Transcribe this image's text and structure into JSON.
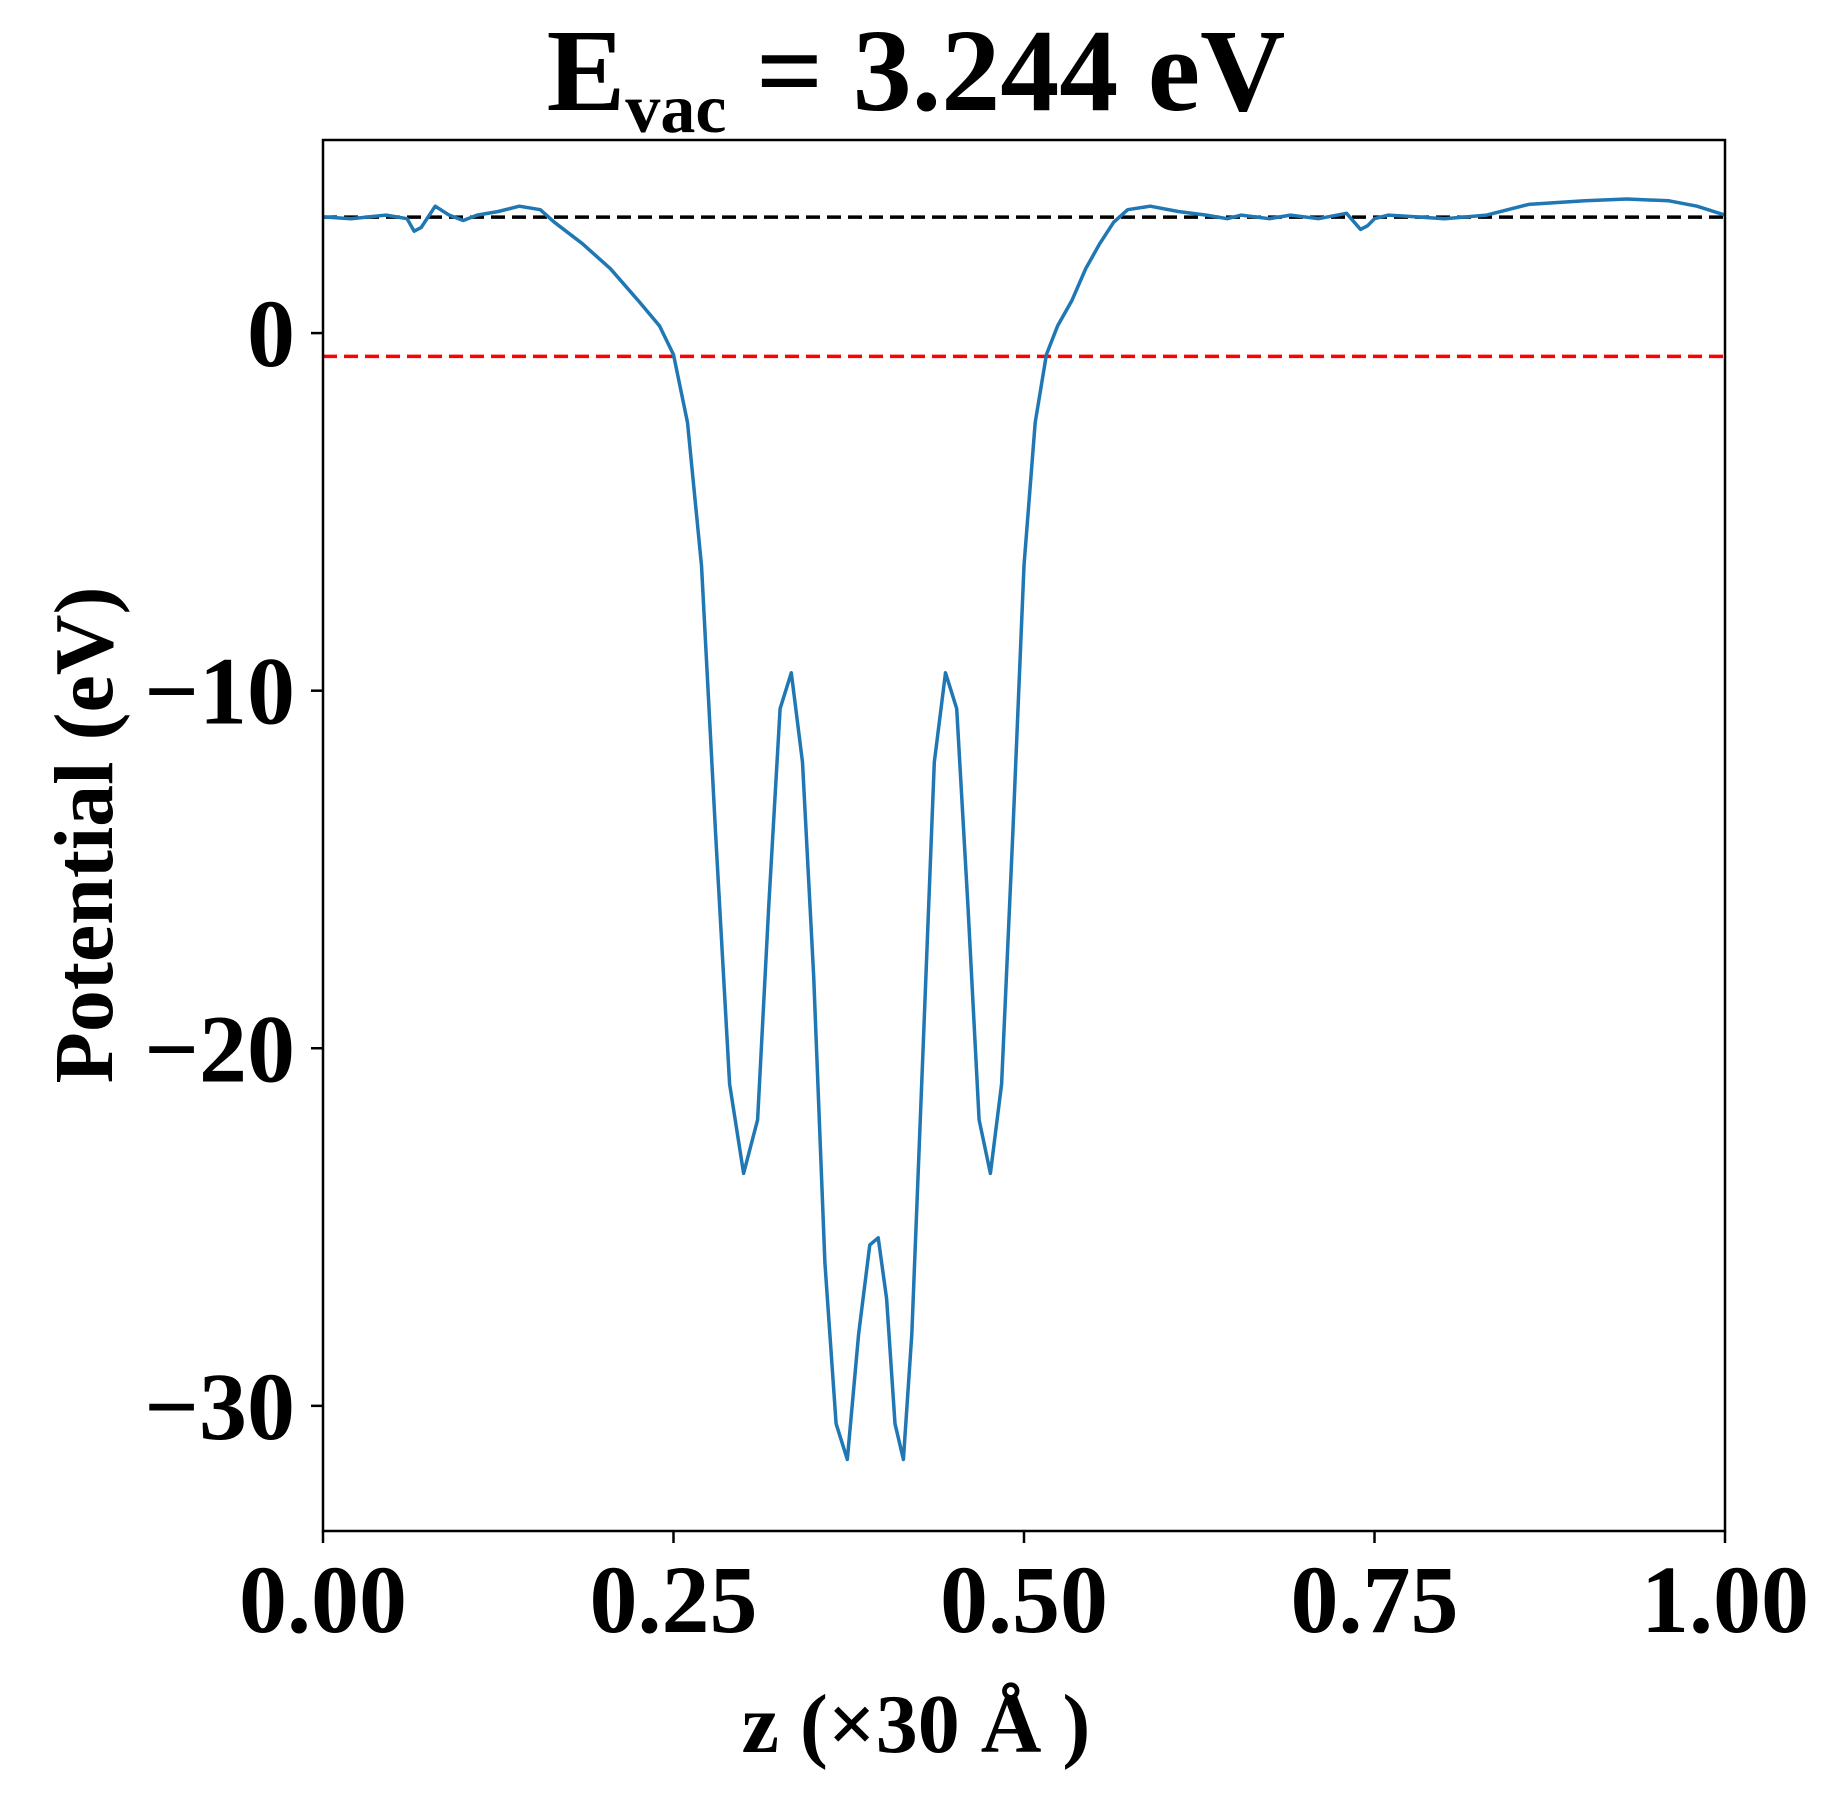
{
  "chart_data": {
    "type": "line",
    "title": {
      "main": "E",
      "subscript": "vac",
      "rest": " = 3.244 eV"
    },
    "xlabel": "z (×30 Å )",
    "ylabel": "Potential (eV)",
    "xlim": [
      0.0,
      1.0
    ],
    "ylim": [
      -33.5,
      5.4
    ],
    "xticks": [
      0.0,
      0.25,
      0.5,
      0.75,
      1.0
    ],
    "xtick_labels": [
      "0.00",
      "0.25",
      "0.50",
      "0.75",
      "1.00"
    ],
    "yticks": [
      0,
      -10,
      -20,
      -30
    ],
    "ytick_labels": [
      "0",
      "−10",
      "−20",
      "−30"
    ],
    "grid": false,
    "reference_lines": [
      {
        "y": 3.244,
        "color": "#000000",
        "style": "dashed"
      },
      {
        "y": -0.65,
        "color": "#ff0000",
        "style": "dashed"
      }
    ],
    "series": [
      {
        "color": "#1f77b4",
        "x": [
          0.0,
          0.02,
          0.045,
          0.06,
          0.065,
          0.07,
          0.08,
          0.09,
          0.1,
          0.11,
          0.125,
          0.14,
          0.155,
          0.165,
          0.185,
          0.205,
          0.225,
          0.24,
          0.25,
          0.26,
          0.27,
          0.28,
          0.29,
          0.3,
          0.31,
          0.318,
          0.326,
          0.334,
          0.342,
          0.35,
          0.358,
          0.366,
          0.374,
          0.382,
          0.39,
          0.396,
          0.402,
          0.408,
          0.414,
          0.42,
          0.428,
          0.436,
          0.444,
          0.452,
          0.46,
          0.468,
          0.476,
          0.484,
          0.492,
          0.5,
          0.508,
          0.516,
          0.524,
          0.534,
          0.544,
          0.554,
          0.564,
          0.574,
          0.59,
          0.61,
          0.63,
          0.645,
          0.655,
          0.675,
          0.69,
          0.71,
          0.73,
          0.74,
          0.745,
          0.75,
          0.76,
          0.78,
          0.8,
          0.83,
          0.86,
          0.9,
          0.93,
          0.96,
          0.98,
          1.0
        ],
        "y": [
          3.25,
          3.2,
          3.3,
          3.2,
          2.85,
          2.95,
          3.55,
          3.3,
          3.15,
          3.3,
          3.4,
          3.55,
          3.45,
          3.1,
          2.5,
          1.8,
          0.9,
          0.2,
          -0.6,
          -2.5,
          -6.5,
          -14,
          -21,
          -23.5,
          -22,
          -16,
          -10.5,
          -9.5,
          -12,
          -18,
          -26,
          -30.5,
          -31.5,
          -28,
          -25.5,
          -25.3,
          -27,
          -30.5,
          -31.5,
          -28,
          -20,
          -12,
          -9.5,
          -10.5,
          -16,
          -22,
          -23.5,
          -21,
          -14,
          -6.5,
          -2.5,
          -0.6,
          0.2,
          0.9,
          1.8,
          2.5,
          3.1,
          3.45,
          3.55,
          3.4,
          3.3,
          3.2,
          3.3,
          3.2,
          3.3,
          3.2,
          3.35,
          2.9,
          3.0,
          3.2,
          3.3,
          3.25,
          3.2,
          3.3,
          3.6,
          3.7,
          3.75,
          3.7,
          3.55,
          3.3
        ]
      }
    ]
  }
}
